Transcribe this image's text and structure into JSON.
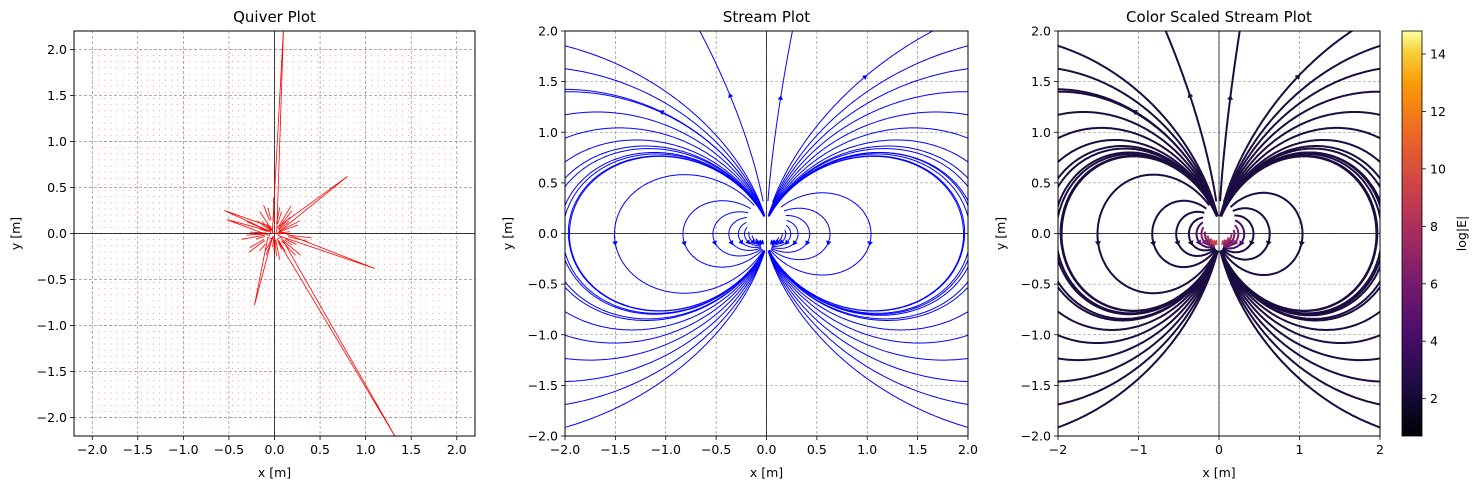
{
  "chart_data": [
    {
      "type": "quiver",
      "title": "Quiver Plot",
      "xlabel": "x [m]",
      "ylabel": "y [m]",
      "xlim": [
        -2.2,
        2.2
      ],
      "ylim": [
        -2.2,
        2.2
      ],
      "xticks": [
        -2.0,
        -1.5,
        -1.0,
        -0.5,
        0.0,
        0.5,
        1.0,
        1.5,
        2.0
      ],
      "xtick_labels": [
        "−2.0",
        "−1.5",
        "−1.0",
        "−0.5",
        "0.0",
        "0.5",
        "1.0",
        "1.5",
        "2.0"
      ],
      "yticks": [
        -2.0,
        -1.5,
        -1.0,
        -0.5,
        0.0,
        0.5,
        1.0,
        1.5,
        2.0
      ],
      "ytick_labels": [
        "−2.0",
        "−1.5",
        "−1.0",
        "−0.5",
        "0.0",
        "0.5",
        "1.0",
        "1.5",
        "2.0"
      ],
      "grid": true,
      "field_color": "#ff0000",
      "grid_range": [
        -2.0,
        2.0
      ],
      "long_arrows": [
        {
          "x0": 0.0,
          "y0": 0.0,
          "x1": 0.1,
          "y1": 2.25
        },
        {
          "x0": 0.05,
          "y0": 0.05,
          "x1": 0.8,
          "y1": 0.62
        },
        {
          "x0": 0.05,
          "y0": 0.0,
          "x1": 1.1,
          "y1": -0.38
        },
        {
          "x0": 0.05,
          "y0": -0.05,
          "x1": 1.35,
          "y1": -2.25
        },
        {
          "x0": -0.05,
          "y0": -0.05,
          "x1": -0.22,
          "y1": -0.78
        },
        {
          "x0": -0.05,
          "y0": 0.05,
          "x1": -0.55,
          "y1": 0.25
        },
        {
          "x0": -0.05,
          "y0": 0.0,
          "x1": -0.52,
          "y1": 0.15
        }
      ]
    },
    {
      "type": "stream",
      "title": "Stream Plot",
      "xlabel": "x [m]",
      "ylabel": "y [m]",
      "xlim": [
        -2.0,
        2.0
      ],
      "ylim": [
        -2.0,
        2.0
      ],
      "xticks": [
        -2.0,
        -1.5,
        -1.0,
        -0.5,
        0.0,
        0.5,
        1.0,
        1.5,
        2.0
      ],
      "xtick_labels": [
        "−2.0",
        "−1.5",
        "−1.0",
        "−0.5",
        "0.0",
        "0.5",
        "1.0",
        "1.5",
        "2.0"
      ],
      "yticks": [
        -2.0,
        -1.5,
        -1.0,
        -0.5,
        0.0,
        0.5,
        1.0,
        1.5,
        2.0
      ],
      "ytick_labels": [
        "−2.0",
        "−1.5",
        "−1.0",
        "−0.5",
        "0.0",
        "0.5",
        "1.0",
        "1.5",
        "2.0"
      ],
      "grid": true,
      "line_color": "#0000ff"
    },
    {
      "type": "stream",
      "title": "Color Scaled Stream Plot",
      "xlabel": "x [m]",
      "ylabel": "y [m]",
      "xlim": [
        -2,
        2
      ],
      "ylim": [
        -2.0,
        2.0
      ],
      "xticks": [
        -2,
        -1,
        0,
        1,
        2
      ],
      "xtick_labels": [
        "−2",
        "−1",
        "0",
        "1",
        "2"
      ],
      "yticks": [
        -2.0,
        -1.5,
        -1.0,
        -0.5,
        0.0,
        0.5,
        1.0,
        1.5,
        2.0
      ],
      "ytick_labels": [
        "−2.0",
        "−1.5",
        "−1.0",
        "−0.5",
        "0.0",
        "0.5",
        "1.0",
        "1.5",
        "2.0"
      ],
      "grid": true,
      "colormap": "inferno",
      "colorbar": {
        "label": "log|E|",
        "range": [
          0.7,
          14.8
        ],
        "ticks": [
          2,
          4,
          6,
          8,
          10,
          12,
          14
        ],
        "tick_labels": [
          "2",
          "4",
          "6",
          "8",
          "10",
          "12",
          "14"
        ]
      }
    }
  ]
}
